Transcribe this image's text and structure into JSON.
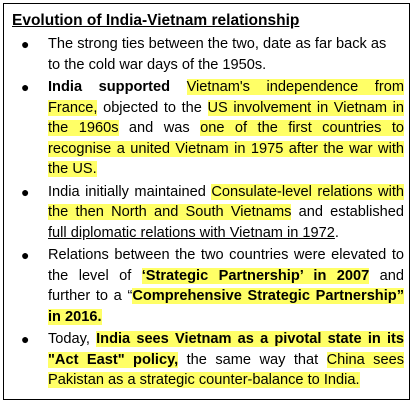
{
  "title": "Evolution of India-Vietnam relationship",
  "bullet_icon": "●",
  "items": [
    {
      "lines": [
        "The strong ties between the two, date as far back as",
        "to the cold war days of the 1950s."
      ]
    },
    {
      "segments": {
        "india_supported": "India supported",
        "s1": " ",
        "vietnam_independence": "Vietnam's independence from France,",
        "s2": " objected to the ",
        "us_involvement": "US involvement in Vietnam in the 1960s",
        "s3": " and was ",
        "first_countries": "one of the first countries to recognise a united Vietnam in 1975 after the war with the US."
      }
    },
    {
      "segments": {
        "s1": "India initially maintained ",
        "consulate": "Consulate-level relations with the then North and South Vietnams",
        "s2": " and established ",
        "full_diplomatic": "full diplomatic relations with Vietnam in 1972",
        "s3": "."
      }
    },
    {
      "segments": {
        "s1": "Relations between the two countries were elevated to the level of ",
        "strategic_2007": "‘Strategic Partnership’ in 2007",
        "s2": " and further to a “",
        "comprehensive_2016": "Comprehensive Strategic Partnership” in 2016."
      }
    },
    {
      "segments": {
        "s1": "Today, ",
        "pivotal": "India sees Vietnam as a pivotal state in its \"Act East\" policy,",
        "s2": " the same way that ",
        "china": "China sees Pakistan as a strategic counter-balance to India."
      }
    }
  ],
  "colors": {
    "highlight": "#ffff66",
    "border": "#000000"
  }
}
